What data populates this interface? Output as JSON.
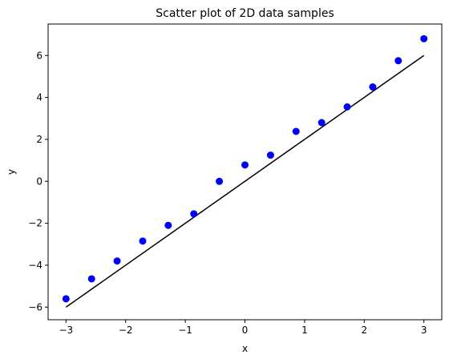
{
  "chart_data": {
    "type": "scatter",
    "title": "Scatter plot of 2D data samples",
    "xlabel": "x",
    "ylabel": "y",
    "xlim": [
      -3.3,
      3.3
    ],
    "ylim": [
      -6.6,
      7.5
    ],
    "xticks": [
      -3,
      -2,
      -1,
      0,
      1,
      2,
      3
    ],
    "xtick_labels": [
      "−3",
      "−2",
      "−1",
      "0",
      "1",
      "2",
      "3"
    ],
    "yticks": [
      -6,
      -4,
      -2,
      0,
      2,
      4,
      6
    ],
    "ytick_labels": [
      "−6",
      "−4",
      "−2",
      "0",
      "2",
      "4",
      "6"
    ],
    "grid": false,
    "points": {
      "color": "#0000ff",
      "x": [
        -3.0,
        -2.571,
        -2.143,
        -1.714,
        -1.286,
        -0.857,
        -0.429,
        0.0,
        0.429,
        0.857,
        1.286,
        1.714,
        2.143,
        2.571,
        3.0
      ],
      "y": [
        -5.6,
        -4.65,
        -3.8,
        -2.85,
        -2.1,
        -1.55,
        0.0,
        0.78,
        1.25,
        2.38,
        2.8,
        3.55,
        4.5,
        5.75,
        6.8
      ]
    },
    "line": {
      "color": "#000000",
      "x": [
        -3.0,
        3.0
      ],
      "y": [
        -6.0,
        6.0
      ]
    }
  }
}
